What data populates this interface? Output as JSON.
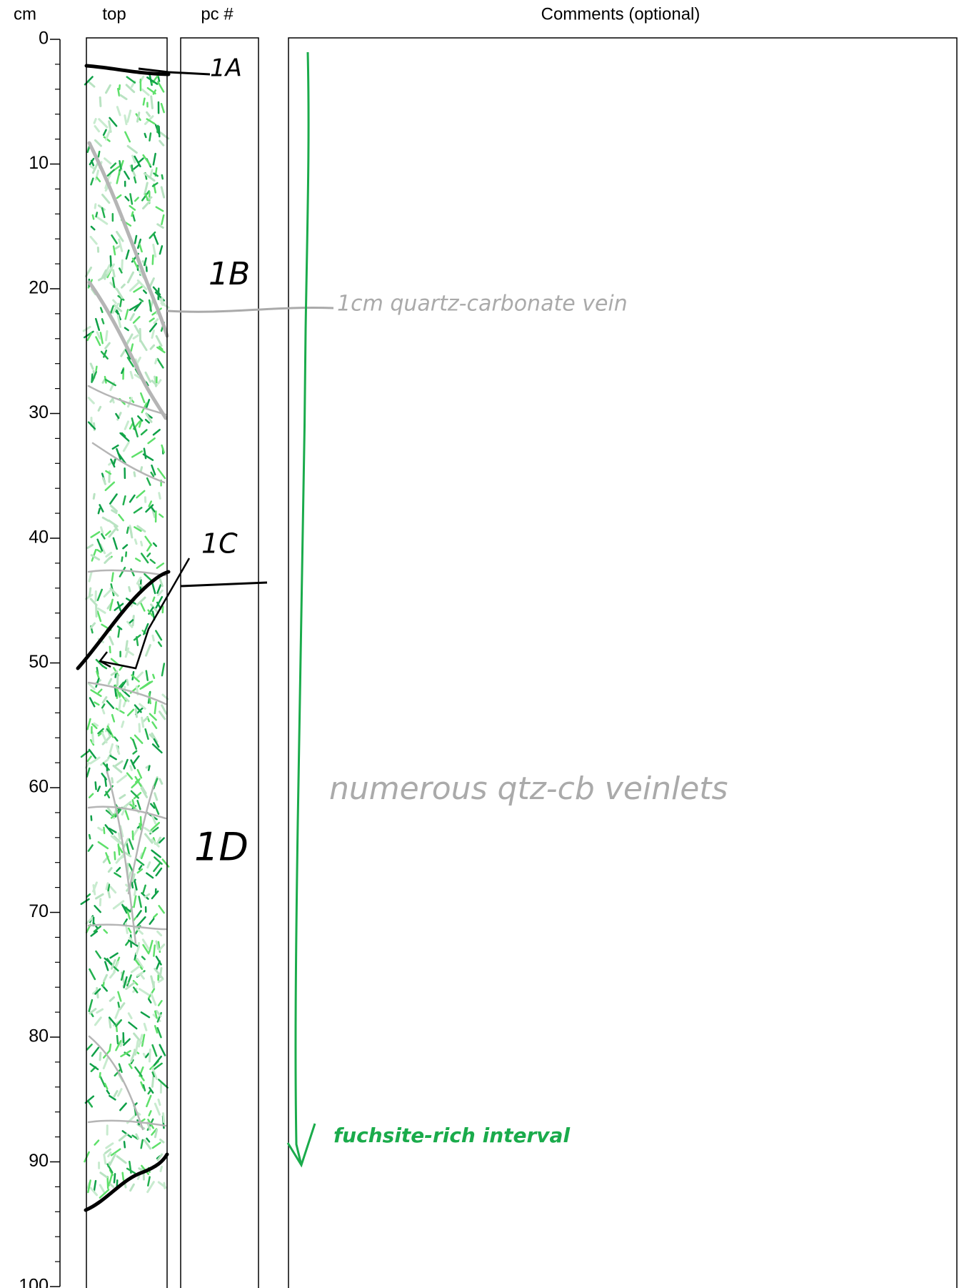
{
  "header": {
    "depth_unit": "cm",
    "top": "top",
    "piece": "pc #",
    "comments": "Comments (optional)"
  },
  "depth_axis": {
    "range": [
      0,
      100
    ],
    "labels": [
      0,
      10,
      20,
      30,
      40,
      50,
      60,
      70,
      80,
      90,
      100
    ]
  },
  "pieces": [
    "1A",
    "1B",
    "1C",
    "1D"
  ],
  "comments": [
    "1cm quartz-carbonate vein",
    "numerous qtz-cb veinlets",
    "fuchsite-rich interval"
  ]
}
